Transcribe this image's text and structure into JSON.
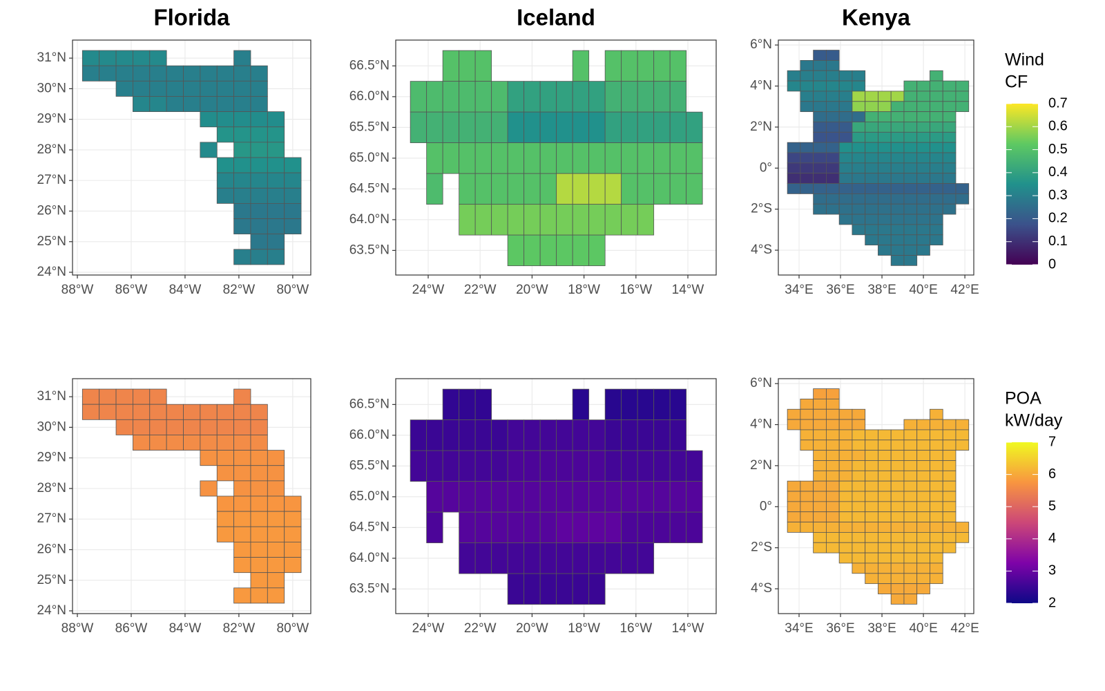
{
  "cell": {
    "dlon": 0.625,
    "dlat": 0.5
  },
  "columns": [
    {
      "title": "Florida",
      "xlim": [
        -88.18,
        -79.33
      ],
      "ylim": [
        23.91,
        31.59
      ],
      "xticks": [
        {
          "value": -88,
          "label": "88°W"
        },
        {
          "value": -86,
          "label": "86°W"
        },
        {
          "value": -84,
          "label": "84°W"
        },
        {
          "value": -82,
          "label": "82°W"
        },
        {
          "value": -80,
          "label": "80°W"
        }
      ],
      "yticks": [
        {
          "value": 24,
          "label": "24°N"
        },
        {
          "value": 25,
          "label": "25°N"
        },
        {
          "value": 26,
          "label": "26°N"
        },
        {
          "value": 27,
          "label": "27°N"
        },
        {
          "value": 28,
          "label": "28°N"
        },
        {
          "value": 29,
          "label": "29°N"
        },
        {
          "value": 30,
          "label": "30°N"
        },
        {
          "value": 31,
          "label": "31°N"
        }
      ],
      "cells": [
        {
          "lat": 31,
          "lon": -87.5,
          "n": 5
        },
        {
          "lat": 31,
          "lon": -81.875,
          "n": 1
        },
        {
          "lat": 30.5,
          "lon": -87.5,
          "n": 11
        },
        {
          "lat": 30,
          "lon": -86.25,
          "n": 9
        },
        {
          "lat": 29.5,
          "lon": -85.625,
          "n": 2
        },
        {
          "lat": 29.5,
          "lon": -84.375,
          "n": 6
        },
        {
          "lat": 29,
          "lon": -83.125,
          "n": 5
        },
        {
          "lat": 28.5,
          "lon": -82.5,
          "n": 4
        },
        {
          "lat": 28,
          "lon": -83.125,
          "n": 1
        },
        {
          "lat": 28,
          "lon": -81.875,
          "n": 3
        },
        {
          "lat": 27.5,
          "lon": -82.5,
          "n": 5
        },
        {
          "lat": 27,
          "lon": -82.5,
          "n": 5
        },
        {
          "lat": 26.5,
          "lon": -82.5,
          "n": 5
        },
        {
          "lat": 26,
          "lon": -81.875,
          "n": 4
        },
        {
          "lat": 25.5,
          "lon": -81.875,
          "n": 4
        },
        {
          "lat": 25,
          "lon": -81.25,
          "n": 2
        },
        {
          "lat": 24.5,
          "lon": -81.875,
          "n": 3
        }
      ]
    },
    {
      "title": "Iceland",
      "xlim": [
        -25.25,
        -12.91
      ],
      "ylim": [
        63.1,
        66.92
      ],
      "xticks": [
        {
          "value": -24,
          "label": "24°W"
        },
        {
          "value": -22,
          "label": "22°W"
        },
        {
          "value": -20,
          "label": "20°W"
        },
        {
          "value": -18,
          "label": "18°W"
        },
        {
          "value": -16,
          "label": "16°W"
        },
        {
          "value": -14,
          "label": "14°W"
        }
      ],
      "yticks": [
        {
          "value": 63.5,
          "label": "63.5°N"
        },
        {
          "value": 64,
          "label": "64.0°N"
        },
        {
          "value": 64.5,
          "label": "64.5°N"
        },
        {
          "value": 65,
          "label": "65.0°N"
        },
        {
          "value": 65.5,
          "label": "65.5°N"
        },
        {
          "value": 66,
          "label": "66.0°N"
        },
        {
          "value": 66.5,
          "label": "66.5°N"
        }
      ],
      "cells": [
        {
          "lat": 66.5,
          "lon": -23.125,
          "n": 3
        },
        {
          "lat": 66.5,
          "lon": -18.125,
          "n": 1
        },
        {
          "lat": 66.5,
          "lon": -16.875,
          "n": 5
        },
        {
          "lat": 66,
          "lon": -24.375,
          "n": 6
        },
        {
          "lat": 66,
          "lon": -20.625,
          "n": 6
        },
        {
          "lat": 66,
          "lon": -16.875,
          "n": 5
        },
        {
          "lat": 65.5,
          "lon": -24.375,
          "n": 6
        },
        {
          "lat": 65.5,
          "lon": -20.625,
          "n": 6
        },
        {
          "lat": 65.5,
          "lon": -16.875,
          "n": 6
        },
        {
          "lat": 65,
          "lon": -23.75,
          "n": 17
        },
        {
          "lat": 64.5,
          "lon": -23.75,
          "n": 1
        },
        {
          "lat": 64.5,
          "lon": -22.5,
          "n": 6
        },
        {
          "lat": 64.5,
          "lon": -18.75,
          "n": 4
        },
        {
          "lat": 64.5,
          "lon": -16.25,
          "n": 5
        },
        {
          "lat": 64,
          "lon": -22.5,
          "n": 12
        },
        {
          "lat": 63.5,
          "lon": -20.625,
          "n": 6
        }
      ]
    },
    {
      "title": "Kenya",
      "xlim": [
        33,
        42.43
      ],
      "ylim": [
        -5.21,
        6.24
      ],
      "xticks": [
        {
          "value": 34,
          "label": "34°E"
        },
        {
          "value": 36,
          "label": "36°E"
        },
        {
          "value": 38,
          "label": "38°E"
        },
        {
          "value": 40,
          "label": "40°E"
        },
        {
          "value": 42,
          "label": "42°E"
        }
      ],
      "yticks": [
        {
          "value": -4,
          "label": "4°S"
        },
        {
          "value": -2,
          "label": "2°S"
        },
        {
          "value": 0,
          "label": "0°"
        },
        {
          "value": 2,
          "label": "2°N"
        },
        {
          "value": 4,
          "label": "4°N"
        },
        {
          "value": 6,
          "label": "6°N"
        }
      ],
      "cells": [
        {
          "lat": 5.5,
          "lon": 35,
          "n": 2
        },
        {
          "lat": 5,
          "lon": 34.375,
          "n": 3
        },
        {
          "lat": 4.5,
          "lon": 33.75,
          "n": 6
        },
        {
          "lat": 4.5,
          "lon": 40.625,
          "n": 1
        },
        {
          "lat": 4,
          "lon": 33.75,
          "n": 6
        },
        {
          "lat": 4,
          "lon": 39.375,
          "n": 5
        },
        {
          "lat": 3.5,
          "lon": 34.375,
          "n": 4
        },
        {
          "lat": 3.5,
          "lon": 36.875,
          "n": 4
        },
        {
          "lat": 3.5,
          "lon": 39.375,
          "n": 5
        },
        {
          "lat": 3,
          "lon": 34.375,
          "n": 4
        },
        {
          "lat": 3,
          "lon": 36.875,
          "n": 3
        },
        {
          "lat": 3,
          "lon": 38.75,
          "n": 6
        },
        {
          "lat": 2.5,
          "lon": 35,
          "n": 4
        },
        {
          "lat": 2.5,
          "lon": 37.5,
          "n": 7
        },
        {
          "lat": 2,
          "lon": 35,
          "n": 3
        },
        {
          "lat": 2,
          "lon": 36.875,
          "n": 8
        },
        {
          "lat": 1.5,
          "lon": 35,
          "n": 3
        },
        {
          "lat": 1.5,
          "lon": 36.875,
          "n": 8
        },
        {
          "lat": 1,
          "lon": 33.75,
          "n": 4
        },
        {
          "lat": 1,
          "lon": 36.25,
          "n": 9
        },
        {
          "lat": 0.5,
          "lon": 33.75,
          "n": 4
        },
        {
          "lat": 0.5,
          "lon": 36.25,
          "n": 9
        },
        {
          "lat": 0,
          "lon": 33.75,
          "n": 4
        },
        {
          "lat": 0,
          "lon": 36.25,
          "n": 9
        },
        {
          "lat": -0.5,
          "lon": 33.75,
          "n": 4
        },
        {
          "lat": -0.5,
          "lon": 36.25,
          "n": 9
        },
        {
          "lat": -1,
          "lon": 33.75,
          "n": 14
        },
        {
          "lat": -1.5,
          "lon": 35,
          "n": 12
        },
        {
          "lat": -2,
          "lon": 35,
          "n": 11
        },
        {
          "lat": -2.5,
          "lon": 36.25,
          "n": 8
        },
        {
          "lat": -3,
          "lon": 36.875,
          "n": 7
        },
        {
          "lat": -3.5,
          "lon": 37.5,
          "n": 6
        },
        {
          "lat": -4,
          "lon": 38.125,
          "n": 4
        },
        {
          "lat": -4.5,
          "lon": 38.75,
          "n": 2
        }
      ]
    }
  ],
  "layers": [
    {
      "legend_title": [
        "Wind",
        "CF"
      ],
      "colormap": "viridis",
      "scale": [
        0,
        0.7
      ],
      "ticks": [
        0,
        0.1,
        0.2,
        0.3,
        0.4,
        0.5,
        0.6,
        0.7
      ],
      "values": [
        [
          0.33,
          0.3,
          0.3,
          0.3,
          0.32,
          0.3,
          0.34,
          0.36,
          0.33,
          0.37,
          0.35,
          0.32,
          0.3,
          0.28,
          0.28,
          0.28,
          0.3
        ],
        [
          0.5,
          0.5,
          0.5,
          0.48,
          0.4,
          0.45,
          0.45,
          0.35,
          0.4,
          0.5,
          0.48,
          0.5,
          0.62,
          0.5,
          0.55,
          0.52
        ],
        [
          0.2,
          0.28,
          0.3,
          0.45,
          0.32,
          0.45,
          0.3,
          0.6,
          0.45,
          0.28,
          0.58,
          0.45,
          0.25,
          0.45,
          0.2,
          0.42,
          0.18,
          0.38,
          0.22,
          0.35,
          0.15,
          0.32,
          0.12,
          0.3,
          0.1,
          0.28,
          0.22,
          0.25,
          0.26,
          0.27,
          0.28,
          0.28,
          0.28,
          0.28
        ]
      ]
    },
    {
      "legend_title": [
        "POA",
        "kW/day"
      ],
      "colormap": "plasma",
      "scale": [
        2,
        7
      ],
      "ticks": [
        2,
        3,
        4,
        5,
        6,
        7
      ],
      "values": [
        [
          5.5,
          5.5,
          5.5,
          5.5,
          5.6,
          5.6,
          5.7,
          5.7,
          5.7,
          5.7,
          5.75,
          5.8,
          5.8,
          5.8,
          5.8,
          5.8,
          5.8
        ],
        [
          2.4,
          2.3,
          2.3,
          2.5,
          2.6,
          2.5,
          2.6,
          2.7,
          2.6,
          2.8,
          2.7,
          2.8,
          2.9,
          2.7,
          2.6,
          2.5
        ],
        [
          5.9,
          6.0,
          6.0,
          6.1,
          6.0,
          6.1,
          6.1,
          6.2,
          6.2,
          6.1,
          6.2,
          6.2,
          6.1,
          6.2,
          6.1,
          6.2,
          6.1,
          6.2,
          6.0,
          6.2,
          6.0,
          6.2,
          6.0,
          6.2,
          6.0,
          6.2,
          6.1,
          6.2,
          6.2,
          6.2,
          6.1,
          6.1,
          6.0,
          6.0
        ]
      ]
    }
  ]
}
